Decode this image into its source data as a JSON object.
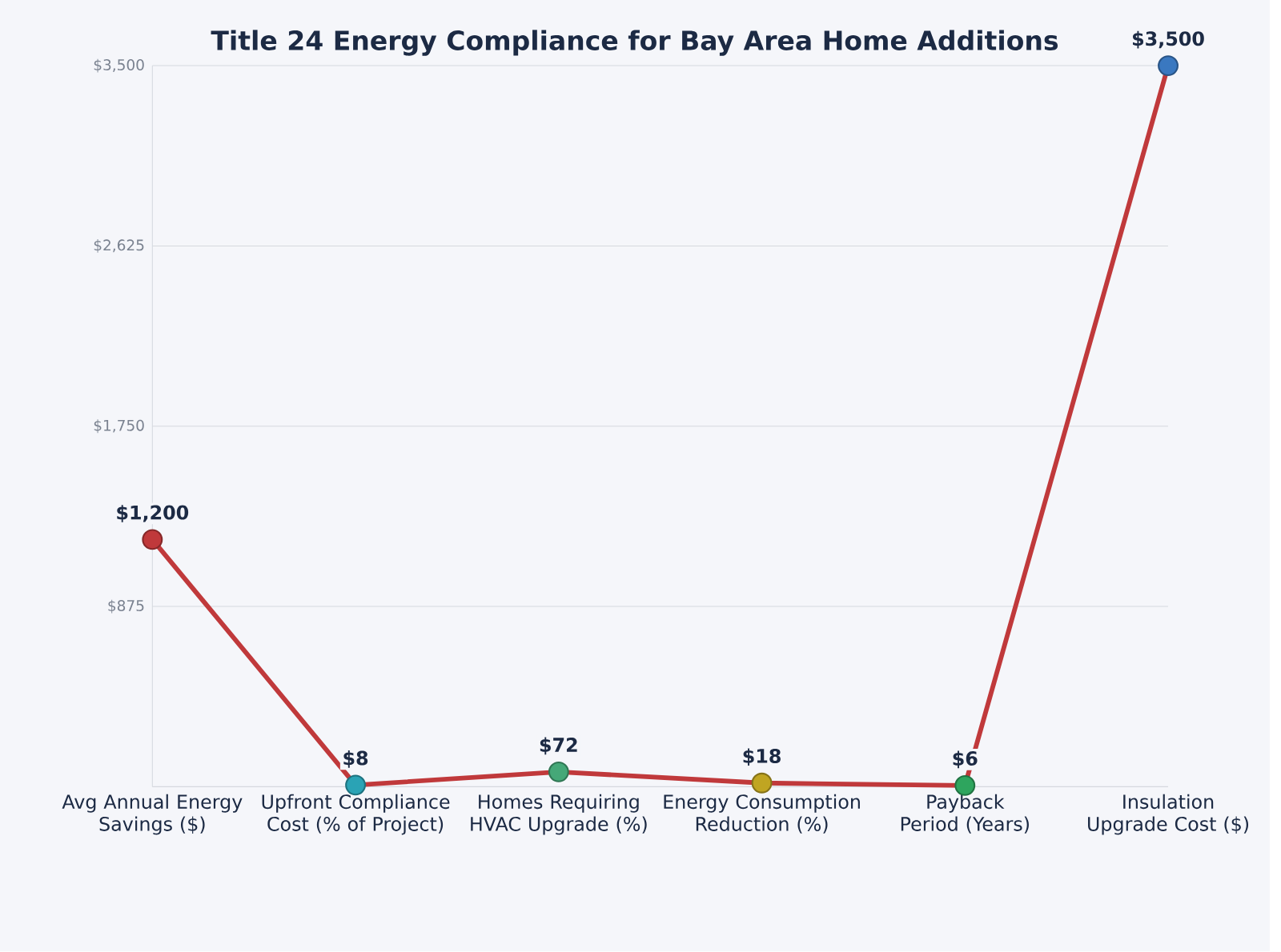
{
  "chart_data": {
    "type": "line",
    "title": "Title 24 Energy Compliance for Bay Area Home Additions",
    "categories": [
      "Avg Annual Energy Savings ($)",
      "Upfront Compliance Cost (% of Project)",
      "Homes Requiring HVAC Upgrade (%)",
      "Energy Consumption Reduction (%)",
      "Payback Period (Years)",
      "Insulation Upgrade Cost ($)"
    ],
    "series": [
      {
        "color": "#c0393b",
        "values": [
          1200,
          8,
          72,
          18,
          6,
          3500
        ],
        "colors": [
          "#c0393b",
          "#2aa3b5",
          "#45a878",
          "#c0a522",
          "#2ea55e",
          "#3a78c0"
        ],
        "value_labels": [
          "$1,200",
          "$8",
          "$72",
          "$18",
          "$6",
          "$3,500"
        ]
      }
    ],
    "ylim": [
      0,
      3500
    ],
    "yticks": [
      {
        "value": 875,
        "label": "$875"
      },
      {
        "value": 1750,
        "label": "$1,750"
      },
      {
        "value": 2625,
        "label": "$2,625"
      },
      {
        "value": 3500,
        "label": "$3,500"
      }
    ],
    "grid": "y",
    "marker": "circle",
    "line_style": "solid"
  }
}
